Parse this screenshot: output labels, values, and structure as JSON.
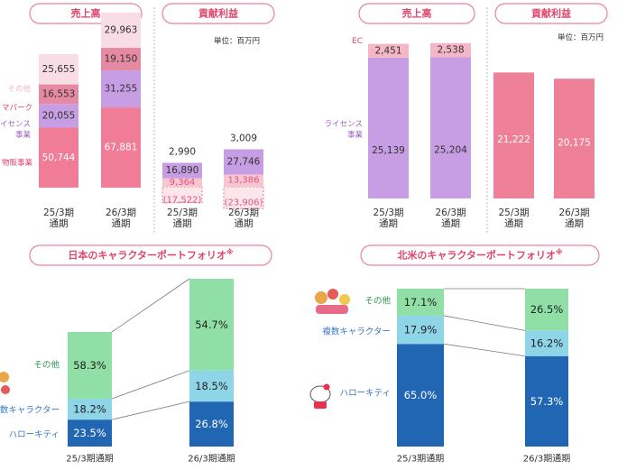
{
  "colors": {
    "pill_border": "#e8849a",
    "pill_text": "#e0456a",
    "pink_strong": "#f07c97",
    "pink_mid": "#e68aa3",
    "pink_light": "#f7c6d3",
    "pink_pale": "#f9dde6",
    "purple": "#c79de3",
    "ec_pink": "#f5b6c7",
    "contrib_pink": "#ee8098",
    "green": "#8fdfa7",
    "light_blue": "#8fd5e8",
    "blue": "#2166b3",
    "neg_text": "#e2557a",
    "label_pink": "#e0456a",
    "label_purple": "#9d60c4",
    "label_blue": "#3a78c6",
    "label_green": "#2f9a52"
  },
  "chart_data": [
    {
      "type": "bar",
      "title": "売上高",
      "unit": "",
      "categories": [
        "25/3期\n通期",
        "26/3期\n通期"
      ],
      "category_lines": [
        [
          "25/3期",
          "通期"
        ],
        [
          "26/3期",
          "通期"
        ]
      ],
      "series": [
        {
          "name": "物販事業",
          "values": [
            50744,
            67881
          ]
        },
        {
          "name": "ライセンス事業",
          "values": [
            20055,
            31255
          ]
        },
        {
          "name": "テーマパーク",
          "values": [
            16553,
            19150
          ]
        },
        {
          "name": "その他",
          "values": [
            25655,
            29963
          ]
        }
      ],
      "legend_labels": [
        "物販事業",
        "ライセンス",
        "事業",
        "マパーク",
        "その他"
      ],
      "value_labels": [
        [
          "50,744",
          "20,055",
          "16,553",
          "25,655"
        ],
        [
          "67,881",
          "31,255",
          "19,150",
          "29,963"
        ]
      ]
    },
    {
      "type": "bar",
      "title": "貢献利益",
      "unit": "単位：百万円",
      "categories": [
        "25/3期\n通期",
        "26/3期\n通期"
      ],
      "category_lines": [
        [
          "25/3期",
          "通期"
        ],
        [
          "26/3期",
          "通期"
        ]
      ],
      "series": [
        {
          "name": "",
          "values": [
            -17522,
            -23906
          ]
        },
        {
          "name": "",
          "values": [
            9364,
            13386
          ]
        },
        {
          "name": "",
          "values": [
            16890,
            27746
          ]
        },
        {
          "name": "",
          "values": [
            2990,
            3009
          ]
        }
      ],
      "value_labels": [
        [
          "(17,522)",
          "9,364",
          "16,890",
          "2,990"
        ],
        [
          "(23,906)",
          "13,386",
          "27,746",
          "3,009"
        ]
      ]
    },
    {
      "type": "bar",
      "title": "売上高",
      "unit": "",
      "categories": [
        "25/3期\n通期",
        "26/3期\n通期"
      ],
      "category_lines": [
        [
          "25/3期",
          "通期"
        ],
        [
          "26/3期",
          "通期"
        ]
      ],
      "series": [
        {
          "name": "ライセンス事業",
          "values": [
            25139,
            25204
          ]
        },
        {
          "name": "EC",
          "values": [
            2451,
            2538
          ]
        }
      ],
      "legend_labels": [
        "EC",
        "ライセンス",
        "事業"
      ],
      "value_labels": [
        [
          "25,139",
          "2,451"
        ],
        [
          "25,204",
          "2,538"
        ]
      ]
    },
    {
      "type": "bar",
      "title": "貢献利益",
      "unit": "単位：百万円",
      "categories": [
        "25/3期\n通期",
        "26/3期\n通期"
      ],
      "category_lines": [
        [
          "25/3期",
          "通期"
        ],
        [
          "26/3期",
          "通期"
        ]
      ],
      "series": [
        {
          "name": "",
          "values": [
            21222,
            20175
          ]
        }
      ],
      "value_labels": [
        [
          "21,222"
        ],
        [
          "20,175"
        ]
      ]
    },
    {
      "type": "bar",
      "title": "日本のキャラクターポートフォリオ",
      "title_mark": "※",
      "stacked_percent": true,
      "categories": [
        "25/3期通期",
        "26/3期通期"
      ],
      "series": [
        {
          "name": "ハローキティ",
          "values": [
            23.5,
            26.8
          ]
        },
        {
          "name": "複数キャラクター",
          "values": [
            18.2,
            18.5
          ]
        },
        {
          "name": "その他",
          "values": [
            58.3,
            54.7
          ]
        }
      ],
      "legend_labels": [
        "ハローキティ",
        "数キャラクター",
        "その他"
      ],
      "value_labels": [
        [
          "23.5%",
          "18.2%",
          "58.3%"
        ],
        [
          "26.8%",
          "18.5%",
          "54.7%"
        ]
      ]
    },
    {
      "type": "bar",
      "title": "北米のキャラクターポートフォリオ",
      "title_mark": "※",
      "stacked_percent": true,
      "categories": [
        "25/3期通期",
        "26/3期通期"
      ],
      "series": [
        {
          "name": "ハローキティ",
          "values": [
            65.0,
            57.3
          ]
        },
        {
          "name": "複数キャラクター",
          "values": [
            17.9,
            16.2
          ]
        },
        {
          "name": "その他",
          "values": [
            17.1,
            26.5
          ]
        }
      ],
      "legend_labels": [
        "ハローキティ",
        "複数キャラクター",
        "その他"
      ],
      "value_labels": [
        [
          "65.0%",
          "17.9%",
          "17.1%"
        ],
        [
          "57.3%",
          "16.2%",
          "26.5%"
        ]
      ]
    }
  ]
}
